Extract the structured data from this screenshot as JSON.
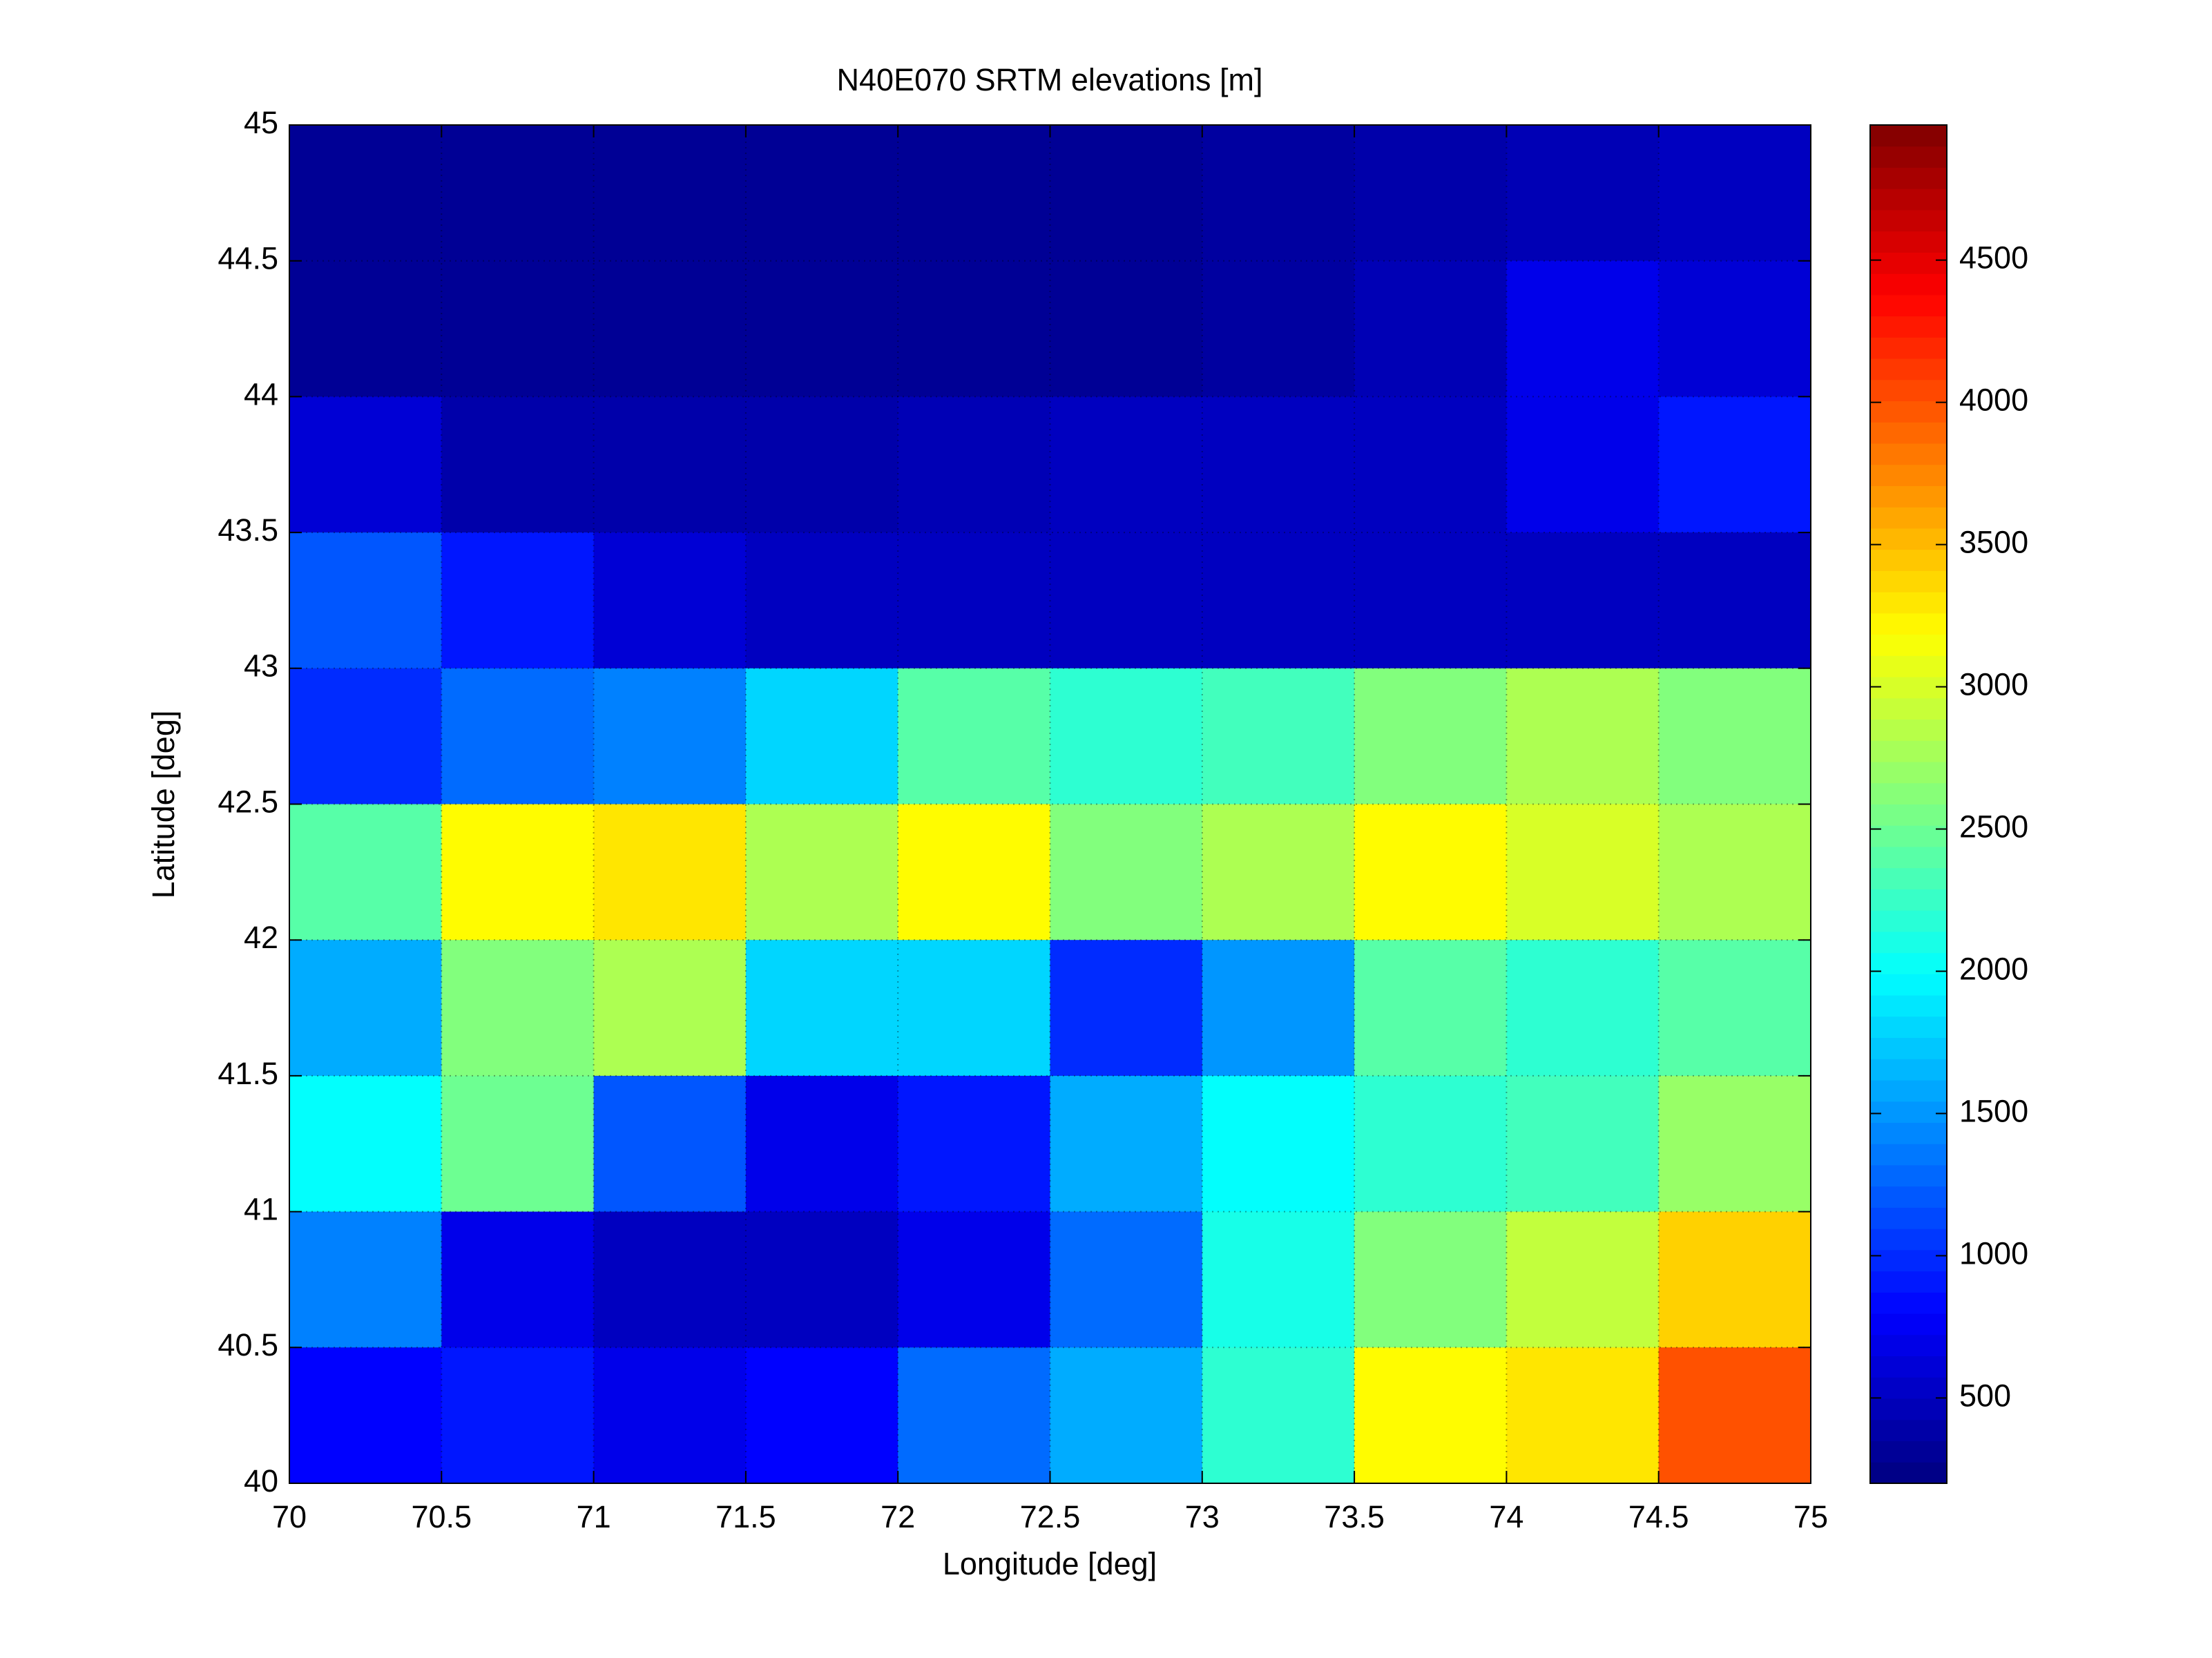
{
  "chart_data": {
    "type": "heatmap",
    "title": "N40E070 SRTM elevations [m]",
    "x_label": "Longitude [deg]",
    "y_label": "Latitude [deg]",
    "x": [
      70.25,
      70.75,
      71.25,
      71.75,
      72.25,
      72.75,
      73.25,
      73.75,
      74.25,
      74.75
    ],
    "y": [
      44.75,
      44.25,
      43.75,
      43.25,
      42.75,
      42.25,
      41.75,
      41.25,
      40.75,
      40.25
    ],
    "z": [
      [
        300,
        300,
        300,
        300,
        300,
        300,
        350,
        400,
        450,
        500
      ],
      [
        300,
        300,
        300,
        300,
        300,
        300,
        350,
        450,
        700,
        600
      ],
      [
        600,
        400,
        400,
        400,
        450,
        500,
        500,
        500,
        700,
        900
      ],
      [
        1200,
        900,
        600,
        500,
        500,
        500,
        500,
        500,
        500,
        500
      ],
      [
        1000,
        1300,
        1400,
        1800,
        2400,
        2200,
        2300,
        2600,
        2800,
        2600
      ],
      [
        2400,
        3200,
        3300,
        2800,
        3200,
        2600,
        2800,
        3200,
        3000,
        2800
      ],
      [
        1600,
        2600,
        2800,
        1800,
        1800,
        1000,
        1500,
        2400,
        2200,
        2400
      ],
      [
        2000,
        2500,
        1200,
        700,
        900,
        1600,
        2000,
        2200,
        2300,
        2700
      ],
      [
        1400,
        700,
        500,
        500,
        700,
        1300,
        2100,
        2600,
        2900,
        3400
      ],
      [
        800,
        900,
        700,
        800,
        1300,
        1600,
        2200,
        3200,
        3300,
        4000
      ]
    ],
    "colormap": "jet",
    "xlim": [
      70,
      75
    ],
    "xticks": [
      70,
      70.5,
      71,
      71.5,
      72,
      72.5,
      73,
      73.5,
      74,
      74.5,
      75
    ],
    "ylim": [
      40,
      45
    ],
    "yticks": [
      40,
      40.5,
      41,
      41.5,
      42,
      42.5,
      43,
      43.5,
      44,
      44.5,
      45
    ],
    "clim": [
      200,
      4975
    ],
    "cticks": [
      500,
      1000,
      1500,
      2000,
      2500,
      3000,
      3500,
      4000,
      4500
    ],
    "grid": true
  }
}
